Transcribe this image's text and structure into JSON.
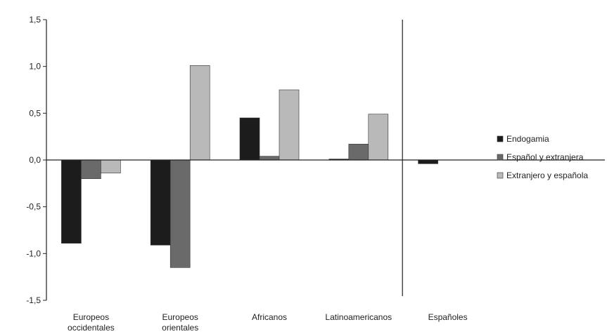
{
  "chart_data": {
    "type": "bar",
    "title": "",
    "xlabel": "",
    "ylabel": "",
    "ylim": [
      -1.5,
      1.5
    ],
    "yticks": [
      1.5,
      1.0,
      0.5,
      0.0,
      -0.5,
      -1.0,
      -1.5
    ],
    "ytick_labels": [
      "1,5",
      "1,0",
      "0,5",
      "0,0",
      "-0,5",
      "-1,0",
      "-1,5"
    ],
    "categories": [
      [
        "Europeos",
        "occidentales"
      ],
      [
        "Europeos",
        "orientales"
      ],
      [
        "Africanos"
      ],
      [
        "Latinoamericanos"
      ],
      [
        "Españoles"
      ]
    ],
    "series": [
      {
        "name": "Endogamia",
        "color": "#1c1c1c",
        "values": [
          -0.89,
          -0.91,
          0.45,
          0.01,
          -0.04
        ]
      },
      {
        "name": "Español y extranjera",
        "color": "#6a6a6a",
        "values": [
          -0.2,
          -1.15,
          0.04,
          0.17,
          null
        ]
      },
      {
        "name": "Extranjero y española",
        "color": "#b9b9b9",
        "values": [
          -0.14,
          1.01,
          0.75,
          0.49,
          null
        ]
      }
    ],
    "grid": false,
    "legend_position": "right",
    "separator_before_category": 4
  }
}
